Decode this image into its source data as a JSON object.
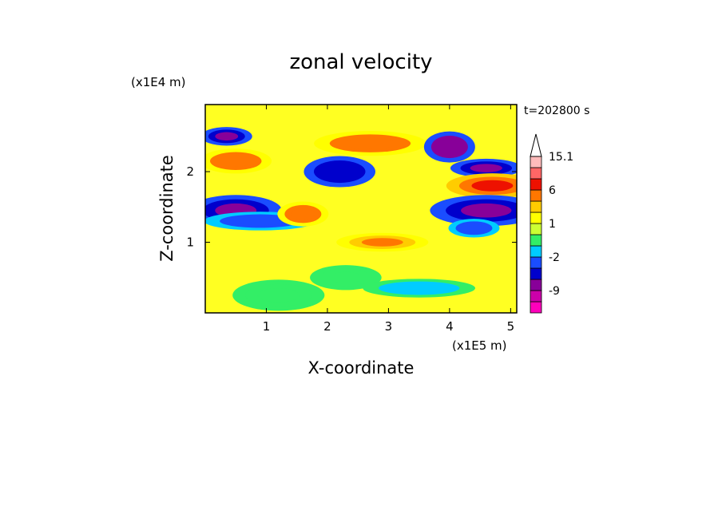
{
  "chart_data": {
    "type": "heatmap",
    "title": "zonal velocity",
    "xlabel": "X-coordinate",
    "ylabel": "Z-coordinate",
    "x_scale_note": "(x1E5 m)",
    "y_scale_note": "(x1E4 m)",
    "time_label": "t=202800 s",
    "xlim": [
      0,
      5.1
    ],
    "ylim": [
      0,
      2.95
    ],
    "x_ticks": [
      1,
      2,
      3,
      4,
      5
    ],
    "x_tick_labels": [
      "1",
      "2",
      "3",
      "4",
      "5"
    ],
    "y_ticks": [
      1,
      2
    ],
    "y_tick_labels": [
      "1",
      "2"
    ],
    "colorbar": {
      "levels": [
        -15.1,
        -12,
        -9,
        -6,
        -4,
        -2,
        -1,
        0,
        1,
        2,
        3,
        6,
        9,
        12,
        15.1
      ],
      "colors": [
        "#ff00bb",
        "#cc00aa",
        "#880099",
        "#0000cc",
        "#1a4dff",
        "#00ccff",
        "#33ee66",
        "#ccff33",
        "#ffff00",
        "#ffcc00",
        "#ff7700",
        "#ee1100",
        "#ff6666",
        "#ffbbbb"
      ],
      "labels": [
        "15.1",
        "6",
        "1",
        "-2",
        "-9"
      ],
      "label_values": [
        15.1,
        6,
        1,
        -2,
        -9
      ],
      "extend_max": true
    },
    "features": [
      {
        "x": 0.35,
        "z": 2.5,
        "value": -8
      },
      {
        "x": 0.5,
        "z": 2.15,
        "value": 5
      },
      {
        "x": 0.5,
        "z": 1.45,
        "value": -7
      },
      {
        "x": 0.9,
        "z": 1.3,
        "value": -3
      },
      {
        "x": 1.6,
        "z": 1.4,
        "value": 5
      },
      {
        "x": 2.2,
        "z": 2.0,
        "value": -6
      },
      {
        "x": 2.9,
        "z": 1.0,
        "value": 4
      },
      {
        "x": 2.7,
        "z": 2.4,
        "value": 5
      },
      {
        "x": 4.0,
        "z": 2.35,
        "value": -9
      },
      {
        "x": 4.6,
        "z": 2.05,
        "value": -7
      },
      {
        "x": 4.7,
        "z": 1.8,
        "value": 6
      },
      {
        "x": 4.6,
        "z": 1.45,
        "value": -7
      },
      {
        "x": 4.4,
        "z": 1.2,
        "value": -3
      },
      {
        "x": 2.3,
        "z": 0.5,
        "value": -1
      },
      {
        "x": 1.2,
        "z": 0.25,
        "value": -1
      },
      {
        "x": 3.5,
        "z": 0.35,
        "value": -2
      }
    ]
  }
}
